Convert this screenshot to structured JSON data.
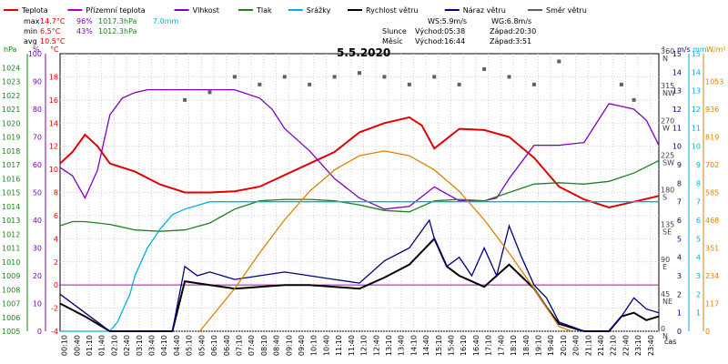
{
  "chart_data": {
    "type": "line",
    "title": "5.5.2020",
    "x_axis": {
      "label": "čas",
      "ticks": [
        "00:10",
        "00:40",
        "01:10",
        "01:40",
        "02:10",
        "02:40",
        "03:10",
        "03:40",
        "04:10",
        "04:40",
        "05:10",
        "05:40",
        "06:10",
        "06:40",
        "07:10",
        "07:40",
        "08:10",
        "08:40",
        "09:10",
        "09:40",
        "10:10",
        "10:40",
        "11:10",
        "11:40",
        "12:10",
        "12:40",
        "13:10",
        "13:40",
        "14:10",
        "14:40",
        "15:10",
        "15:40",
        "16:10",
        "16:40",
        "17:10",
        "17:40",
        "18:10",
        "18:40",
        "19:10",
        "19:40",
        "20:10",
        "20:40",
        "21:10",
        "21:40",
        "22:10",
        "22:40",
        "23:10",
        "23:40"
      ]
    },
    "axes": {
      "hpa": {
        "unit": "hPa",
        "range": [
          1005,
          1025
        ],
        "ticks": [
          "1005",
          "1006",
          "1007",
          "1008",
          "1009",
          "1010",
          "1011",
          "1012",
          "1013",
          "1014",
          "1015",
          "1016",
          "1017",
          "1018",
          "1019",
          "1020",
          "1021",
          "1022",
          "1023",
          "1024"
        ]
      },
      "pct": {
        "unit": "%",
        "range": [
          0,
          100
        ],
        "ticks": [
          "0",
          "10",
          "20",
          "30",
          "40",
          "50",
          "60",
          "70",
          "80",
          "90",
          "100"
        ]
      },
      "temp": {
        "unit": "°C",
        "range": [
          -4,
          20
        ],
        "ticks": [
          "-4",
          "-2",
          "0",
          "2",
          "4",
          "6",
          "8",
          "10",
          "12",
          "14",
          "16",
          "18"
        ]
      },
      "deg": {
        "unit": "°",
        "range": [
          0,
          360
        ],
        "ticks": [
          {
            "value": "0",
            "dir": "N"
          },
          {
            "value": "45",
            "dir": "NE"
          },
          {
            "value": "90",
            "dir": "E"
          },
          {
            "value": "135",
            "dir": "SE"
          },
          {
            "value": "180",
            "dir": "S"
          },
          {
            "value": "225",
            "dir": "SW"
          },
          {
            "value": "270",
            "dir": "W"
          },
          {
            "value": "315",
            "dir": "NW"
          },
          {
            "value": "360",
            "dir": "N"
          }
        ]
      },
      "ms": {
        "unit": "m/s",
        "range": [
          0,
          15
        ],
        "ticks": [
          "0",
          "1",
          "2",
          "3",
          "4",
          "5",
          "6",
          "7",
          "8",
          "9",
          "10",
          "11",
          "12",
          "13",
          "14",
          "15"
        ]
      },
      "mm": {
        "unit": "mm",
        "range": [
          0,
          15
        ],
        "ticks": [
          "1",
          "2",
          "3",
          "4",
          "5",
          "6",
          "7",
          "8",
          "9",
          "10",
          "11",
          "12",
          "13",
          "14",
          "15"
        ]
      },
      "wm2": {
        "unit": "W/m²",
        "range": [
          0,
          1170
        ],
        "ticks": [
          "0",
          "117",
          "234",
          "351",
          "468",
          "585",
          "702",
          "819",
          "936",
          "1053"
        ]
      }
    },
    "legend": [
      {
        "name": "Teplota",
        "color": "#e00000"
      },
      {
        "name": "Přízemní teplota",
        "color": "#b000c0"
      },
      {
        "name": "Vlhkost",
        "color": "#8000c0"
      },
      {
        "name": "Tlak",
        "color": "#208020"
      },
      {
        "name": "Srážky",
        "color": "#00b0e0"
      },
      {
        "name": "Rychlost větru",
        "color": "#000000"
      },
      {
        "name": "Náraz větru",
        "color": "#000080"
      },
      {
        "name": "Směr větru",
        "color": "#606060"
      }
    ],
    "stats": {
      "rows": [
        {
          "label": "max",
          "temp": "14.7°C",
          "hum": "96%",
          "press": "1017.3hPa",
          "rain": "7.0mm"
        },
        {
          "label": "min",
          "temp": " 6.5°C",
          "hum": "43%",
          "press": "1012.3hPa",
          "rain": ""
        },
        {
          "label": "avg",
          "temp": "10.5°C",
          "hum": "",
          "press": "",
          "rain": ""
        }
      ],
      "ws": "WS:5.9m/s",
      "wg": "WG:6.8m/s",
      "sun": {
        "label": "Slunce",
        "rise": "Východ:05:38",
        "set": "Západ:20:30"
      },
      "moon": {
        "label": "Měsíc",
        "rise": "Východ:16:44",
        "set": "Západ:3:51"
      }
    },
    "series": [
      {
        "name": "Teplota",
        "axis": "temp",
        "x": [
          0,
          0.5,
          1,
          1.5,
          2,
          3,
          4,
          5,
          6,
          7,
          8,
          9,
          10,
          11,
          12,
          13,
          14,
          14.5,
          15,
          16,
          17,
          18,
          19,
          20,
          21,
          22,
          23,
          24
        ],
        "values": [
          10.5,
          11.5,
          13.0,
          12.0,
          10.5,
          9.8,
          8.7,
          8.0,
          8.0,
          8.1,
          8.5,
          9.5,
          10.5,
          11.5,
          13.2,
          14.0,
          14.5,
          13.8,
          11.8,
          13.5,
          13.4,
          12.8,
          11.0,
          8.5,
          7.4,
          6.7,
          7.2,
          7.7
        ]
      },
      {
        "name": "Vlhkost",
        "axis": "pct",
        "x": [
          0,
          0.5,
          1,
          1.5,
          2,
          2.5,
          3,
          3.5,
          4,
          5,
          6,
          7,
          8,
          8.5,
          9,
          10,
          11,
          12,
          13,
          14,
          15,
          16,
          17,
          17.5,
          18,
          19,
          20,
          21,
          22,
          22.5,
          23,
          23.5,
          24
        ],
        "values": [
          59,
          56,
          48,
          58,
          78,
          84,
          86,
          87,
          87,
          87,
          87,
          87,
          84,
          80,
          73,
          65,
          55,
          48,
          44,
          45,
          52,
          47,
          47,
          48,
          55,
          67,
          67,
          68,
          82,
          81,
          80,
          76,
          67
        ]
      },
      {
        "name": "Tlak",
        "axis": "hpa",
        "x": [
          0,
          0.5,
          1,
          2,
          3,
          4,
          5,
          6,
          7,
          8,
          9,
          10,
          11,
          12,
          13,
          14,
          15,
          16,
          17,
          18,
          19,
          20,
          21,
          22,
          23,
          24
        ],
        "values": [
          1012.6,
          1012.9,
          1012.9,
          1012.7,
          1012.3,
          1012.2,
          1012.3,
          1012.8,
          1013.8,
          1014.4,
          1014.5,
          1014.5,
          1014.4,
          1014.1,
          1013.7,
          1013.6,
          1014.4,
          1014.5,
          1014.4,
          1015.0,
          1015.6,
          1015.7,
          1015.6,
          1015.8,
          1016.4,
          1017.3
        ]
      },
      {
        "name": "Srážky",
        "axis": "mm",
        "x": [
          0,
          1.5,
          2,
          2.3,
          2.8,
          3,
          3.5,
          4,
          4.5,
          5,
          5.5,
          6,
          6.5,
          24
        ],
        "values": [
          0,
          0,
          0,
          0.5,
          2.0,
          3.0,
          4.5,
          5.5,
          6.3,
          6.6,
          6.8,
          7.0,
          7.0,
          7.0
        ]
      },
      {
        "name": "Rychlost větru",
        "axis": "ms",
        "x": [
          0,
          1,
          2,
          3,
          4,
          4.5,
          5,
          6,
          7,
          8,
          9,
          10,
          11,
          12,
          13,
          14,
          15,
          15.5,
          16,
          17,
          18,
          19,
          19.5,
          20,
          21,
          22,
          22.5,
          23,
          23.5,
          24
        ],
        "values": [
          1.5,
          0.8,
          0,
          0,
          0,
          0,
          2.7,
          2.5,
          2.3,
          2.4,
          2.5,
          2.5,
          2.4,
          2.3,
          2.9,
          3.6,
          5.0,
          3.5,
          3.0,
          2.4,
          3.6,
          2.3,
          1.3,
          0.4,
          0,
          0,
          0.8,
          1.0,
          0.6,
          0.8
        ]
      },
      {
        "name": "Náraz větru",
        "axis": "ms",
        "x": [
          0,
          1,
          2,
          3,
          4,
          4.5,
          5,
          5.5,
          6,
          7,
          8,
          9,
          10,
          11,
          12,
          13,
          14,
          14.8,
          15,
          15.5,
          16,
          16.5,
          17,
          17.5,
          18,
          18.5,
          19,
          19.5,
          20,
          21,
          22,
          22.5,
          23,
          23.5,
          24
        ],
        "values": [
          2.0,
          1.0,
          0,
          0,
          0,
          0,
          3.5,
          3.0,
          3.2,
          2.8,
          3.0,
          3.2,
          3.0,
          2.8,
          2.6,
          3.8,
          4.5,
          6.0,
          5.0,
          3.5,
          4.0,
          3.0,
          4.5,
          3.0,
          5.7,
          4.0,
          2.5,
          1.8,
          0.5,
          0,
          0,
          0.8,
          1.8,
          1.2,
          1.0
        ]
      },
      {
        "name": "Směr větru",
        "axis": "deg",
        "x": [
          5,
          6,
          7,
          8,
          9,
          10,
          11,
          12,
          13,
          14,
          15,
          16,
          17,
          18,
          19,
          20,
          22.5,
          23
        ],
        "values": [
          300,
          310,
          330,
          320,
          330,
          320,
          330,
          335,
          330,
          320,
          330,
          320,
          340,
          330,
          320,
          350,
          320,
          300
        ]
      },
      {
        "name": "Sluneční svit",
        "axis": "wm2",
        "x": [
          5.6,
          7,
          8,
          9,
          10,
          11,
          12,
          13,
          14,
          15,
          16,
          17,
          18,
          19,
          20,
          20.5
        ],
        "values": [
          0,
          180,
          330,
          470,
          590,
          680,
          740,
          760,
          740,
          680,
          590,
          470,
          330,
          180,
          20,
          0
        ]
      }
    ]
  }
}
